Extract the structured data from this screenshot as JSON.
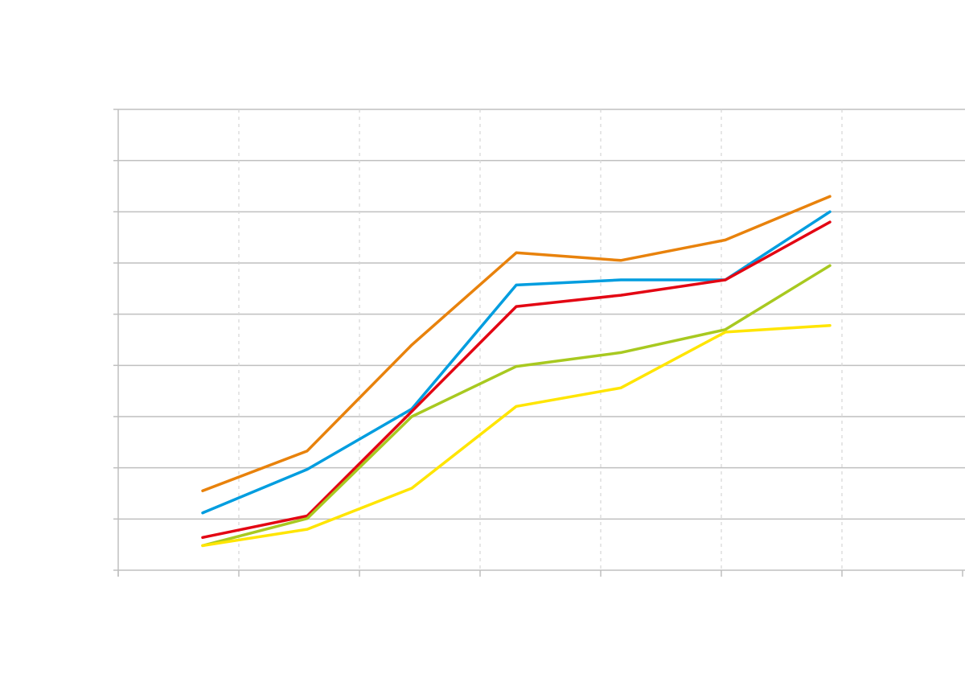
{
  "chart_data": {
    "type": "line",
    "title": "",
    "xlabel": "",
    "ylabel": "",
    "x": [
      1,
      2,
      3,
      4,
      5,
      6,
      7
    ],
    "xlim": [
      0.2,
      8.2
    ],
    "ylim": [
      0,
      9
    ],
    "y_gridlines": [
      1,
      2,
      3,
      4,
      5,
      6,
      7,
      8,
      9
    ],
    "x_gridlines": [
      1,
      2,
      3,
      4,
      5,
      6,
      7
    ],
    "grid": true,
    "legend": "none",
    "series": [
      {
        "color": "#e8820c",
        "values": [
          1.55,
          2.33,
          4.4,
          6.2,
          6.05,
          6.45,
          7.3
        ]
      },
      {
        "color": "#009ddf",
        "values": [
          1.12,
          1.97,
          3.15,
          5.57,
          5.67,
          5.67,
          7.0
        ]
      },
      {
        "color": "#e30613",
        "values": [
          0.64,
          1.06,
          3.1,
          5.15,
          5.37,
          5.67,
          6.8
        ]
      },
      {
        "color": "#a8c920",
        "values": [
          0.48,
          1.01,
          3.0,
          3.98,
          4.25,
          4.7,
          5.95
        ]
      },
      {
        "color": "#ffe500",
        "values": [
          0.48,
          0.8,
          1.6,
          3.2,
          3.56,
          4.65,
          4.78
        ]
      }
    ]
  }
}
